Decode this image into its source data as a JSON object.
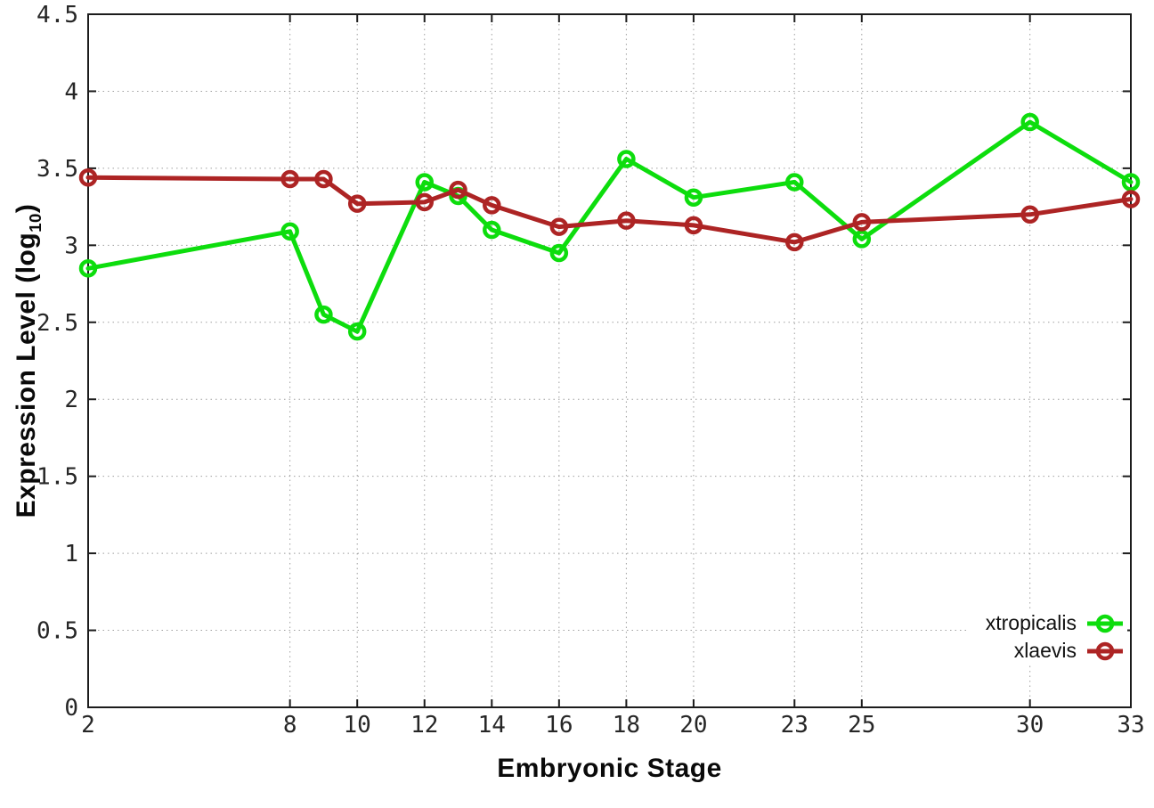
{
  "chart_data": {
    "type": "line",
    "x": [
      2,
      8,
      9,
      10,
      12,
      13,
      14,
      16,
      18,
      20,
      23,
      25,
      30,
      33
    ],
    "series": [
      {
        "name": "xtropicalis",
        "color": "#0ddd0d",
        "values": [
          2.85,
          3.09,
          2.55,
          2.44,
          3.41,
          3.32,
          3.1,
          2.95,
          3.56,
          3.31,
          3.41,
          3.04,
          3.8,
          3.41
        ]
      },
      {
        "name": "xlaevis",
        "color": "#ad2424",
        "values": [
          3.44,
          3.43,
          3.43,
          3.27,
          3.28,
          3.36,
          3.26,
          3.12,
          3.16,
          3.13,
          3.02,
          3.15,
          3.2,
          3.3
        ]
      }
    ],
    "title": "",
    "xlabel": "Embryonic Stage",
    "ylabel": "Expression Level (log10)",
    "xlim": [
      2,
      33
    ],
    "ylim": [
      0,
      4.5
    ],
    "x_ticks": [
      2,
      8,
      10,
      12,
      14,
      16,
      18,
      20,
      23,
      25,
      30,
      33
    ],
    "y_ticks": [
      0,
      0.5,
      1,
      1.5,
      2,
      2.5,
      3,
      3.5,
      4,
      4.5
    ],
    "grid": true,
    "legend_position": "bottom-right-inside",
    "marker": "open-circle"
  },
  "axis": {
    "x_title": "Embryonic Stage",
    "y_title_main": "Expression Level (log",
    "y_title_sub": "10",
    "y_title_close": ")"
  },
  "style": {
    "background": "#ffffff",
    "border_color": "#1c1c1c",
    "grid_color": "#9f9f9f",
    "tick_label_color": "#262626"
  }
}
